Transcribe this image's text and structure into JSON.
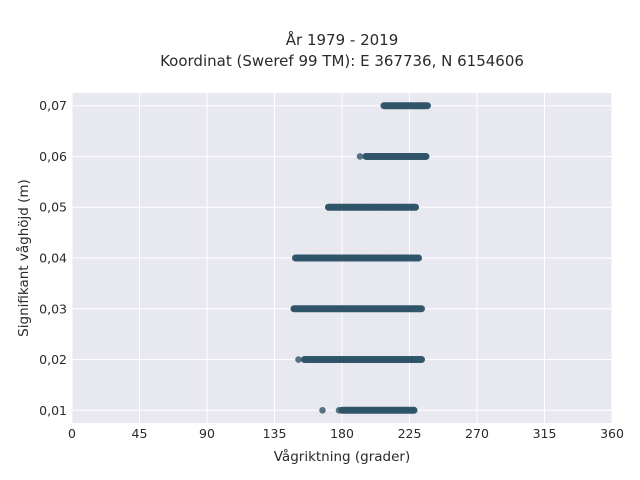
{
  "chart_data": {
    "type": "scatter",
    "title_line1": "År 1979 - 2019",
    "title_line2": "Koordinat (Sweref 99 TM): E 367736, N 6154606",
    "xlabel": "Vågriktning (grader)",
    "ylabel": "Signifikant våghöjd (m)",
    "xlim": [
      0,
      360
    ],
    "ylim": [
      0.0075,
      0.0725
    ],
    "x_ticks": [
      0,
      45,
      90,
      135,
      180,
      225,
      270,
      315,
      360
    ],
    "x_tick_labels": [
      "0",
      "45",
      "90",
      "135",
      "180",
      "225",
      "270",
      "315",
      "360"
    ],
    "y_ticks": [
      0.01,
      0.02,
      0.03,
      0.04,
      0.05,
      0.06,
      0.07
    ],
    "y_tick_labels": [
      "0,01",
      "0,02",
      "0,03",
      "0,04",
      "0,05",
      "0,06",
      "0,07"
    ],
    "grid": true,
    "colors": {
      "plot_bg": "#e8e8f0",
      "grid": "#ffffff",
      "point": "#2f5468"
    },
    "series": [
      {
        "clusters": [
          {
            "y": 0.01,
            "x_range": [
              180,
              228
            ],
            "sparse_points": [
              167,
              178
            ]
          },
          {
            "y": 0.02,
            "x_range": [
              155,
              233
            ],
            "sparse_points": [
              151
            ]
          },
          {
            "y": 0.03,
            "x_range": [
              148,
              233
            ],
            "sparse_points": []
          },
          {
            "y": 0.04,
            "x_range": [
              149,
              231
            ],
            "sparse_points": []
          },
          {
            "y": 0.05,
            "x_range": [
              171,
              229
            ],
            "sparse_points": []
          },
          {
            "y": 0.06,
            "x_range": [
              196,
              236
            ],
            "sparse_points": [
              192
            ]
          },
          {
            "y": 0.07,
            "x_range": [
              208,
              237
            ],
            "sparse_points": []
          }
        ]
      }
    ]
  }
}
